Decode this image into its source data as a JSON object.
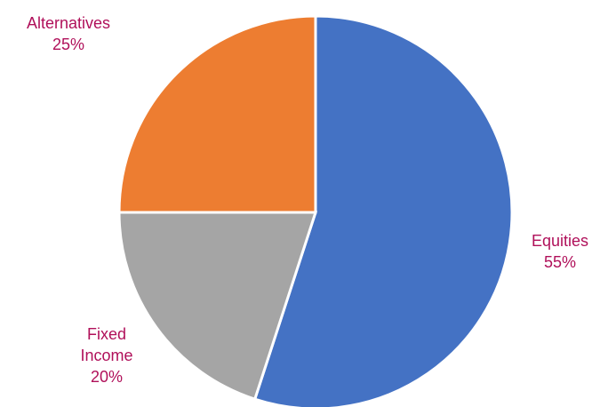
{
  "chart_data": {
    "type": "pie",
    "categories": [
      "Equities",
      "Fixed Income",
      "Alternatives"
    ],
    "values": [
      55,
      20,
      25
    ],
    "value_labels": [
      "55%",
      "20%",
      "25%"
    ],
    "colors": [
      "#4472c4",
      "#a5a5a5",
      "#ed7d31"
    ]
  }
}
